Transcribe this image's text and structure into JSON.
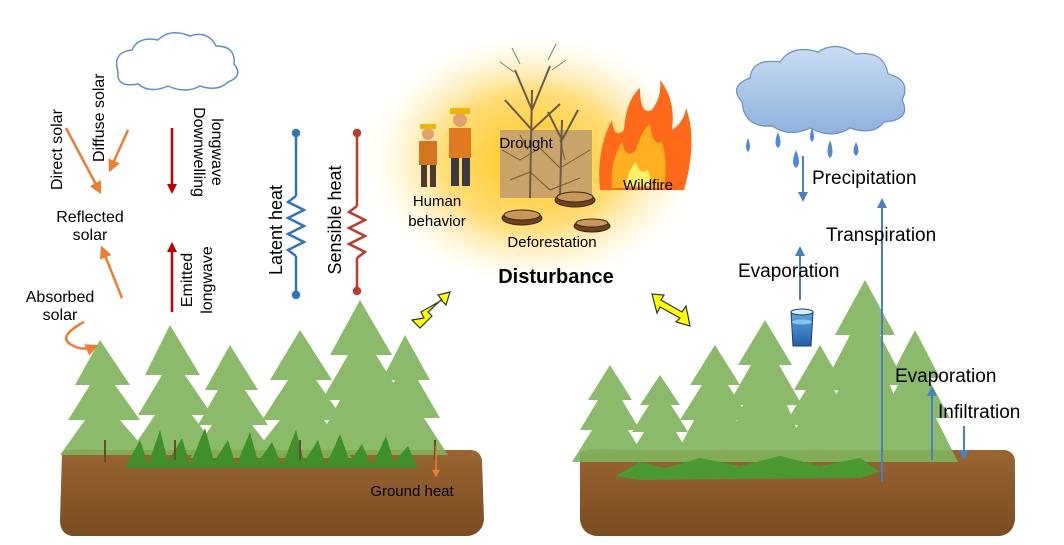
{
  "labels": {
    "direct_solar": "Direct solar",
    "diffuse_solar": "Diffuse solar",
    "reflected_solar_1": "Reflected",
    "reflected_solar_2": "solar",
    "absorbed_solar_1": "Absorbed",
    "absorbed_solar_2": "solar",
    "downwelling_1": "Downwelling",
    "downwelling_2": "longwave",
    "emitted_1": "Emitted",
    "emitted_2": "longwave",
    "latent_heat": "Latent heat",
    "sensible_heat": "Sensible heat",
    "ground_heat": "Ground heat",
    "drought": "Drought",
    "wildfire": "Wildfire",
    "human_behavior_1": "Human",
    "human_behavior_2": "behavior",
    "deforestation": "Deforestation",
    "disturbance": "Disturbance",
    "precipitation": "Precipitation",
    "transpiration": "Transpiration",
    "evaporation_top": "Evaporation",
    "evaporation_bottom": "Evaporation",
    "infiltration": "Infiltration"
  },
  "colors": {
    "solar_arrow": "#ed7d31",
    "longwave_arrow": "#c00000",
    "latent_heat": "#2e75b6",
    "sensible_heat": "#c0392b",
    "water_arrow": "#4a7fc1",
    "soil": "#8b5a2b",
    "forest": "#6fa84a",
    "glow": "#ffc000",
    "double_arrow": "#ffff00"
  }
}
